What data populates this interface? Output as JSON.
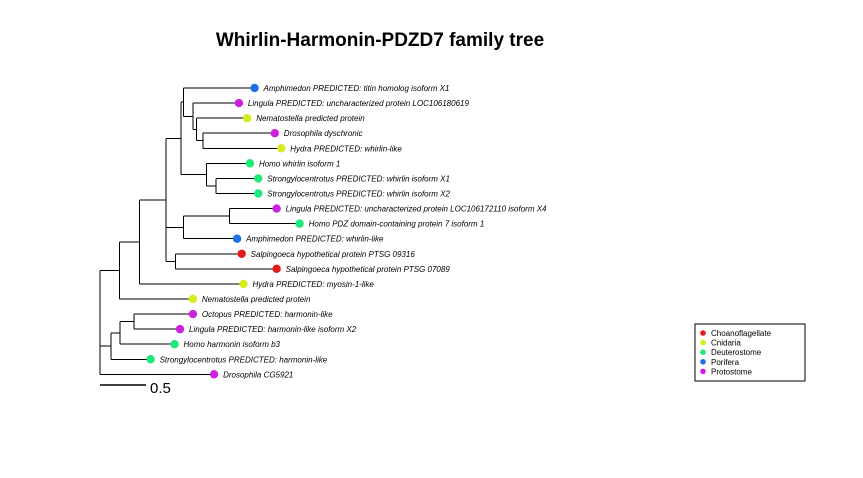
{
  "title": "Whirlin-Harmonin-PDZD7 family tree",
  "colors": {
    "Choanoflagellate": "#e31a1c",
    "Cnidaria": "#d4ec1e",
    "Deuterostome": "#1ee87a",
    "Porifera": "#1f6fe6",
    "Protostome": "#cc22dd"
  },
  "legend": {
    "items": [
      "Choanoflagellate",
      "Cnidaria",
      "Deuterostome",
      "Porifera",
      "Protostome"
    ]
  },
  "scale_bar": {
    "label": "0.5",
    "value": 0.5
  },
  "tree": {
    "children": [
      {
        "children": [
          {
            "children": [
              {
                "children": [
                  {
                    "children": [
                      {
                        "children": [
                          {
                            "name": "Amphimedon  PREDICTED: titin homolog isoform X1",
                            "group": "Porifera",
                            "length": 0.77
                          },
                          {
                            "children": [
                              {
                                "name": "Lingula  PREDICTED: uncharacterized protein LOC106180619",
                                "group": "Protostome",
                                "length": 0.5
                              },
                              {
                                "children": [
                                  {
                                    "name": "Nematostella  predicted protein",
                                    "group": "Cnidaria",
                                    "length": 0.55
                                  },
                                  {
                                    "children": [
                                      {
                                        "name": "Drosophila  dyschronic",
                                        "group": "Protostome",
                                        "length": 0.78
                                      },
                                      {
                                        "name": "Hydra  PREDICTED: whirlin-like",
                                        "group": "Cnidaria",
                                        "length": 0.85
                                      }
                                    ],
                                    "length": 0.07
                                  }
                                ],
                                "length": 0.04
                              }
                            ],
                            "length": 0.1
                          }
                        ],
                        "length": 0.03
                      },
                      {
                        "children": [
                          {
                            "name": "Homo  whirlin isoform 1",
                            "group": "Deuterostome",
                            "length": 0.47
                          },
                          {
                            "children": [
                              {
                                "name": "Strongylocentrotus  PREDICTED: whirlin isoform X1",
                                "group": "Deuterostome",
                                "length": 0.46
                              },
                              {
                                "name": "Strongylocentrotus  PREDICTED: whirlin isoform X2",
                                "group": "Deuterostome",
                                "length": 0.46
                              }
                            ],
                            "length": 0.1
                          }
                        ],
                        "length": 0.28
                      }
                    ],
                    "length": 0.16
                  },
                  {
                    "children": [
                      {
                        "children": [
                          {
                            "name": "Lingula  PREDICTED: uncharacterized protein LOC106172110 isoform X4",
                            "group": "Protostome",
                            "length": 0.51
                          },
                          {
                            "name": "Homo  PDZ domain-containing protein 7 isoform 1",
                            "group": "Deuterostome",
                            "length": 0.76
                          }
                        ],
                        "length": 0.5
                      },
                      {
                        "name": "Amphimedon  PREDICTED: whirlin-like",
                        "group": "Porifera",
                        "length": 0.58
                      }
                    ],
                    "length": 0.19
                  },
                  {
                    "children": [
                      {
                        "name": "Salpingoeca  hypothetical protein PTSG 09316",
                        "group": "Choanoflagellate",
                        "length": 0.72
                      },
                      {
                        "name": "Salpingoeca  hypothetical protein PTSG 07089",
                        "group": "Choanoflagellate",
                        "length": 1.1
                      }
                    ],
                    "length": 0.1
                  }
                ],
                "length": 0.29
              },
              {
                "name": "Hydra  PREDICTED: myosin-1-like",
                "group": "Cnidaria",
                "length": 1.13
              }
            ],
            "length": 0.22
          },
          {
            "name": "Nematostella  predicted protein",
            "group": "Cnidaria",
            "length": 0.8
          }
        ],
        "length": 0.21
      },
      {
        "children": [
          {
            "children": [
              {
                "children": [
                  {
                    "name": "Octopus  PREDICTED: harmonin-like",
                    "group": "Protostome",
                    "length": 0.64
                  },
                  {
                    "name": "Lingula  PREDICTED: harmonin-like isoform X2",
                    "group": "Protostome",
                    "length": 0.5
                  }
                ],
                "length": 0.15
              },
              {
                "name": "Homo  harmonin isoform b3",
                "group": "Deuterostome",
                "length": 0.59
              }
            ],
            "length": 0.1
          },
          {
            "name": "Strongylocentrotus  PREDICTED: harmonin-like",
            "group": "Deuterostome",
            "length": 0.43
          }
        ],
        "length": 0.12
      },
      {
        "name": "Drosophila  CG5921",
        "group": "Protostome",
        "length": 1.24
      }
    ]
  }
}
